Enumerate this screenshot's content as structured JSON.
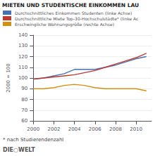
{
  "chart_data": {
    "type": "line",
    "title": "MIETEN UND STUDENTISCHE EINKOMMEN LAU",
    "ylabel": "2000 = 100",
    "annotations": [
      "* nach Studierendenzahl",
      "DIE○WELT"
    ],
    "x": [
      2000,
      2001,
      2002,
      2003,
      2004,
      2005,
      2006,
      2007,
      2008,
      2009,
      2010,
      2011
    ],
    "xlim": [
      2000,
      2011.5
    ],
    "xticks": [
      2000,
      2002,
      2004,
      2006,
      2008,
      2010
    ],
    "ylim": [
      60,
      140
    ],
    "yticks": [
      60,
      70,
      80,
      90,
      100,
      110,
      120,
      130,
      140
    ],
    "grid": true,
    "legend": "upper left",
    "series": [
      {
        "name": "Durchschnittliches Einkommen Studenten (linke Achse)",
        "color": "#4472b8",
        "values": [
          99,
          100,
          102,
          104,
          108,
          108,
          108,
          110,
          112,
          115,
          118,
          120
        ]
      },
      {
        "name": "Durchschnittliche Miete Top-30-Hochschulstädte* (linke Ac",
        "color": "#c0392b",
        "values": [
          99,
          100,
          101,
          102,
          103,
          105,
          107,
          110,
          113,
          116,
          119,
          123
        ]
      },
      {
        "name": "Erschwingliche Wohnungsgröße (rechte Achse)",
        "color": "#d4900a",
        "values": [
          90,
          90,
          91,
          93,
          94,
          93,
          91,
          90,
          90,
          90,
          90,
          88
        ]
      }
    ]
  }
}
